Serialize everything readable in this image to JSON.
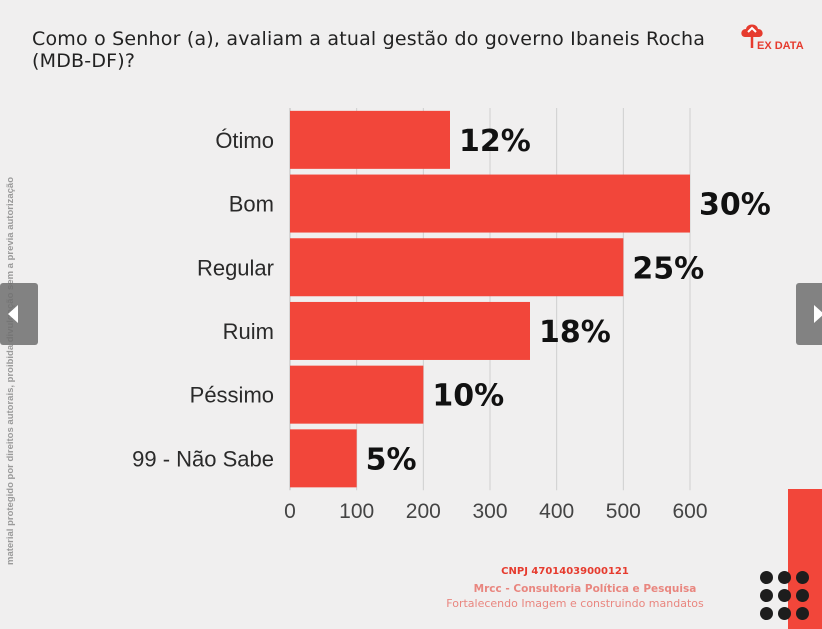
{
  "title": "Como o Senhor (a), avaliam a atual gestão do governo Ibaneis Rocha (MDB-DF)?",
  "logo": {
    "text": "EX DATA",
    "icon": "cloud-pin-icon"
  },
  "side_note": "material protegido por direitos autorais, proibida divulgação sem a previa autorização",
  "nav": {
    "prev_icon": "chevron-left-icon",
    "next_icon": "chevron-right-icon"
  },
  "footer": {
    "cnpj": "CNPJ 47014039000121",
    "company": "Mrcc - Consultoria Política e Pesquisa",
    "slogan": "Fortalecendo Imagem e construindo mandatos"
  },
  "colors": {
    "bar": "#f2463a",
    "accent": "#e63b2e",
    "background": "#f0efef"
  },
  "chart_data": {
    "type": "bar",
    "orientation": "horizontal",
    "categories": [
      "Ótimo",
      "Bom",
      "Regular",
      "Ruim",
      "Péssimo",
      "99 - Não Sabe"
    ],
    "values": [
      240,
      600,
      500,
      360,
      200,
      100
    ],
    "labels": [
      "12%",
      "30%",
      "25%",
      "18%",
      "10%",
      "5%"
    ],
    "xlim": [
      0,
      600
    ],
    "xticks": [
      0,
      100,
      200,
      300,
      400,
      500,
      600
    ],
    "grid": true,
    "title": "Como o Senhor (a), avaliam a atual gestão do governo Ibaneis Rocha (MDB-DF)?"
  }
}
